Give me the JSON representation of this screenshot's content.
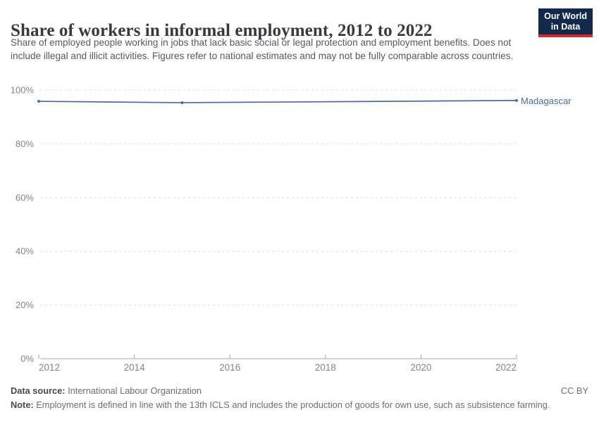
{
  "header": {
    "title": "Share of workers in informal employment, 2012 to 2022",
    "subtitle": "Share of employed people working in jobs that lack basic social or legal protection and employment benefits. Does not include illegal and illicit activities. Figures refer to national estimates and may not be fully comparable across countries.",
    "logo": {
      "line1": "Our World",
      "line2": "in Data",
      "bg_color": "#12294b",
      "accent_color": "#d7282f"
    }
  },
  "chart_data": {
    "type": "line",
    "title": "Share of workers in informal employment, 2012 to 2022",
    "x": [
      2012,
      2015,
      2022
    ],
    "series": [
      {
        "name": "Madagascar",
        "values": [
          95.8,
          95.3,
          96.1
        ],
        "color": "#4c6a9c"
      }
    ],
    "xlabel": "",
    "ylabel": "",
    "xlim": [
      2012,
      2022
    ],
    "ylim": [
      0,
      100
    ],
    "x_ticks": [
      2012,
      2014,
      2016,
      2018,
      2020,
      2022
    ],
    "y_ticks": [
      0,
      20,
      40,
      60,
      80,
      100
    ],
    "y_tick_suffix": "%",
    "grid": "horizontal-dashed",
    "legend_position": "right-of-line-end",
    "axis_text_color": "#858585",
    "gridline_color": "#dcdcdc",
    "axis_line_color": "#a8a8a8"
  },
  "footer": {
    "data_source_label": "Data source:",
    "data_source_value": " International Labour Organization",
    "note_label": "Note:",
    "note_value": " Employment is defined in line with the 13th ICLS and includes the production of goods for own use, such as subsistence farming.",
    "license": "CC BY"
  }
}
